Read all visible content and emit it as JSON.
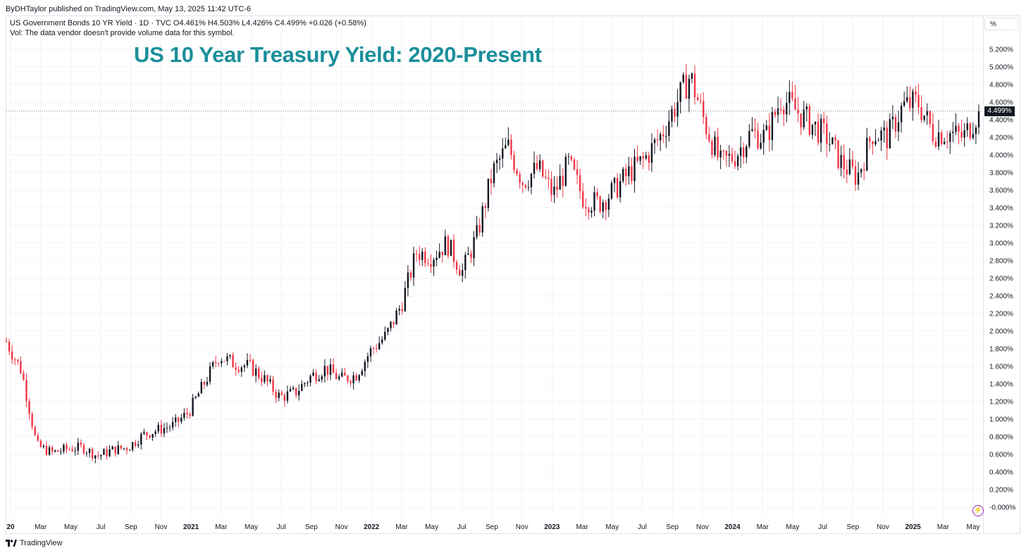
{
  "header": {
    "published": "ByDHTaylor published on TradingView.com, May 13, 2025 11:42 UTC-6"
  },
  "legend": {
    "line1": "US Government Bonds 10 YR Yield · 1D · TVC  O4.461%  H4.503%  L4.426%  C4.499%  +0.026 (+0.58%)",
    "line2": "Vol: The data vendor doesn't provide volume data for this symbol."
  },
  "title": "US 10 Year Treasury Yield: 2020-Present",
  "axis": {
    "unit_button": "%",
    "last_value_label": "4.499%"
  },
  "footer": {
    "brand": "TradingView"
  },
  "colors": {
    "up": "#131722",
    "down": "#f23645",
    "title": "#1a8f9a",
    "grid": "#f0f3fa"
  },
  "chart_data": {
    "type": "line",
    "candlestick": true,
    "title": "US 10 Year Treasury Yield: 2020-Present",
    "xlabel": "",
    "ylabel": "",
    "ylim": [
      -0.0,
      5.4
    ],
    "y_ticks": [
      "-0.000%",
      "0.200%",
      "0.400%",
      "0.600%",
      "0.800%",
      "1.000%",
      "1.200%",
      "1.400%",
      "1.600%",
      "1.800%",
      "2.000%",
      "2.200%",
      "2.400%",
      "2.600%",
      "2.800%",
      "3.000%",
      "3.200%",
      "3.400%",
      "3.600%",
      "3.800%",
      "4.000%",
      "4.200%",
      "4.400%",
      "4.600%",
      "4.800%",
      "5.000%",
      "5.200%"
    ],
    "x_ticks": [
      {
        "label": "20",
        "year": true
      },
      {
        "label": "Mar",
        "year": false
      },
      {
        "label": "May",
        "year": false
      },
      {
        "label": "Jul",
        "year": false
      },
      {
        "label": "Sep",
        "year": false
      },
      {
        "label": "Nov",
        "year": false
      },
      {
        "label": "2021",
        "year": true
      },
      {
        "label": "Mar",
        "year": false
      },
      {
        "label": "May",
        "year": false
      },
      {
        "label": "Jul",
        "year": false
      },
      {
        "label": "Sep",
        "year": false
      },
      {
        "label": "Nov",
        "year": false
      },
      {
        "label": "2022",
        "year": true
      },
      {
        "label": "Mar",
        "year": false
      },
      {
        "label": "May",
        "year": false
      },
      {
        "label": "Jul",
        "year": false
      },
      {
        "label": "Sep",
        "year": false
      },
      {
        "label": "Nov",
        "year": false
      },
      {
        "label": "2023",
        "year": true
      },
      {
        "label": "Mar",
        "year": false
      },
      {
        "label": "May",
        "year": false
      },
      {
        "label": "Jul",
        "year": false
      },
      {
        "label": "Sep",
        "year": false
      },
      {
        "label": "Nov",
        "year": false
      },
      {
        "label": "2024",
        "year": true
      },
      {
        "label": "Mar",
        "year": false
      },
      {
        "label": "May",
        "year": false
      },
      {
        "label": "Jul",
        "year": false
      },
      {
        "label": "Sep",
        "year": false
      },
      {
        "label": "Nov",
        "year": false
      },
      {
        "label": "2025",
        "year": true
      },
      {
        "label": "Mar",
        "year": false
      },
      {
        "label": "May",
        "year": false
      }
    ],
    "series": [
      {
        "x": [
          "2020-01",
          "2020-02",
          "2020-03",
          "2020-04",
          "2020-05",
          "2020-06",
          "2020-07",
          "2020-08",
          "2020-09",
          "2020-10",
          "2020-11",
          "2020-12",
          "2021-01",
          "2021-02",
          "2021-03",
          "2021-04",
          "2021-05",
          "2021-06",
          "2021-07",
          "2021-08",
          "2021-09",
          "2021-10",
          "2021-11",
          "2021-12",
          "2022-01",
          "2022-02",
          "2022-03",
          "2022-04",
          "2022-05",
          "2022-06",
          "2022-07",
          "2022-08",
          "2022-09",
          "2022-10",
          "2022-11",
          "2022-12",
          "2023-01",
          "2023-02",
          "2023-03",
          "2023-04",
          "2023-05",
          "2023-06",
          "2023-07",
          "2023-08",
          "2023-09",
          "2023-10",
          "2023-11",
          "2023-12",
          "2024-01",
          "2024-02",
          "2024-03",
          "2024-04",
          "2024-05",
          "2024-06",
          "2024-07",
          "2024-08",
          "2024-09",
          "2024-10",
          "2024-11",
          "2024-12",
          "2025-01",
          "2025-02",
          "2025-03",
          "2025-04",
          "2025-05"
        ],
        "y": [
          1.88,
          1.55,
          0.7,
          0.62,
          0.66,
          0.68,
          0.58,
          0.65,
          0.68,
          0.82,
          0.88,
          0.93,
          1.08,
          1.4,
          1.72,
          1.63,
          1.6,
          1.45,
          1.25,
          1.3,
          1.48,
          1.58,
          1.45,
          1.5,
          1.78,
          1.95,
          2.3,
          2.9,
          2.85,
          3.0,
          2.67,
          3.1,
          3.8,
          4.1,
          3.7,
          3.85,
          3.55,
          3.9,
          3.5,
          3.45,
          3.6,
          3.8,
          3.95,
          4.2,
          4.55,
          4.9,
          4.35,
          3.9,
          4.0,
          4.25,
          4.2,
          4.65,
          4.5,
          4.35,
          4.2,
          3.9,
          3.75,
          4.25,
          4.2,
          4.55,
          4.6,
          4.25,
          4.25,
          4.2,
          4.499
        ]
      }
    ]
  }
}
